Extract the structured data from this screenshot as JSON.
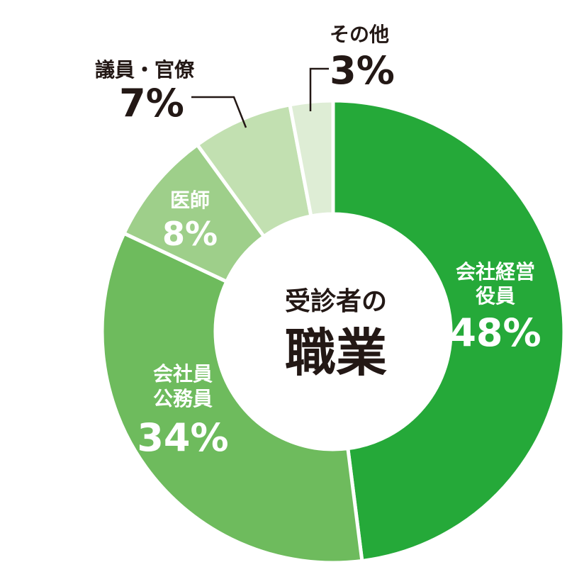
{
  "chart_data": {
    "type": "pie",
    "style": "donut",
    "center_title": [
      "受診者の",
      "職業"
    ],
    "slices": [
      {
        "label": [
          "会社経営",
          "役員"
        ],
        "value": 48,
        "value_label": "48%",
        "color": "#25a939"
      },
      {
        "label": [
          "会社員",
          "公務員"
        ],
        "value": 34,
        "value_label": "34%",
        "color": "#6ebb5d"
      },
      {
        "label": [
          "医師"
        ],
        "value": 8,
        "value_label": "8%",
        "color": "#9ecf8a"
      },
      {
        "label": [
          "議員・官僚"
        ],
        "value": 7,
        "value_label": "7%",
        "color": "#c2e0b1"
      },
      {
        "label": [
          "その他"
        ],
        "value": 3,
        "value_label": "3%",
        "color": "#deedd5"
      }
    ]
  }
}
